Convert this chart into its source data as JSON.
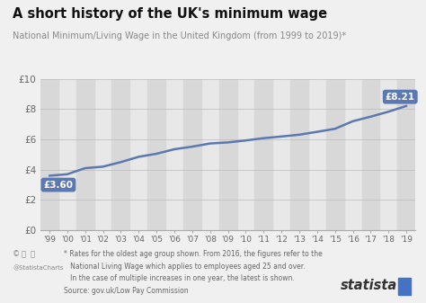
{
  "title": "A short history of the UK's minimum wage",
  "subtitle": "National Minimum/Living Wage in the United Kingdom (from 1999 to 2019)*",
  "years": [
    1999,
    2000,
    2001,
    2002,
    2003,
    2004,
    2005,
    2006,
    2007,
    2008,
    2009,
    2010,
    2011,
    2012,
    2013,
    2014,
    2015,
    2016,
    2017,
    2018,
    2019
  ],
  "values": [
    3.6,
    3.7,
    4.1,
    4.2,
    4.5,
    4.85,
    5.05,
    5.35,
    5.52,
    5.73,
    5.8,
    5.93,
    6.08,
    6.19,
    6.31,
    6.5,
    6.7,
    7.2,
    7.5,
    7.83,
    8.21
  ],
  "x_labels": [
    "'99",
    "'00",
    "'01",
    "'02",
    "'03",
    "'04",
    "'05",
    "'06",
    "'07",
    "'08",
    "'09",
    "'10",
    "'11",
    "'12",
    "'13",
    "'14",
    "'15",
    "'16",
    "'17",
    "'18",
    "'19"
  ],
  "y_ticks": [
    0,
    2,
    4,
    6,
    8,
    10
  ],
  "y_labels": [
    "£0",
    "£2",
    "£4",
    "£6",
    "£8",
    "£10"
  ],
  "line_color": "#5b78b0",
  "bg_color": "#f0f0f0",
  "plot_bg_color": "#e8e8e8",
  "band_color": "#d8d8d8",
  "annotation_start_label": "£3.60",
  "annotation_end_label": "£8.21",
  "annotation_box_color": "#5b78b0",
  "annotation_text_color": "#ffffff",
  "footnote1": "* Rates for the oldest age group shown. From 2016, the figures refer to the",
  "footnote2": "   National Living Wage which applies to employees aged 25 and over.",
  "footnote3": "   In the case of multiple increases in one year, the latest is shown.",
  "source": "Source: gov.uk/Low Pay Commission",
  "statista_text": "statista",
  "cc_icons": "Ⓒ ⓘ Ⓜ",
  "handle": "@StatistaCharts"
}
